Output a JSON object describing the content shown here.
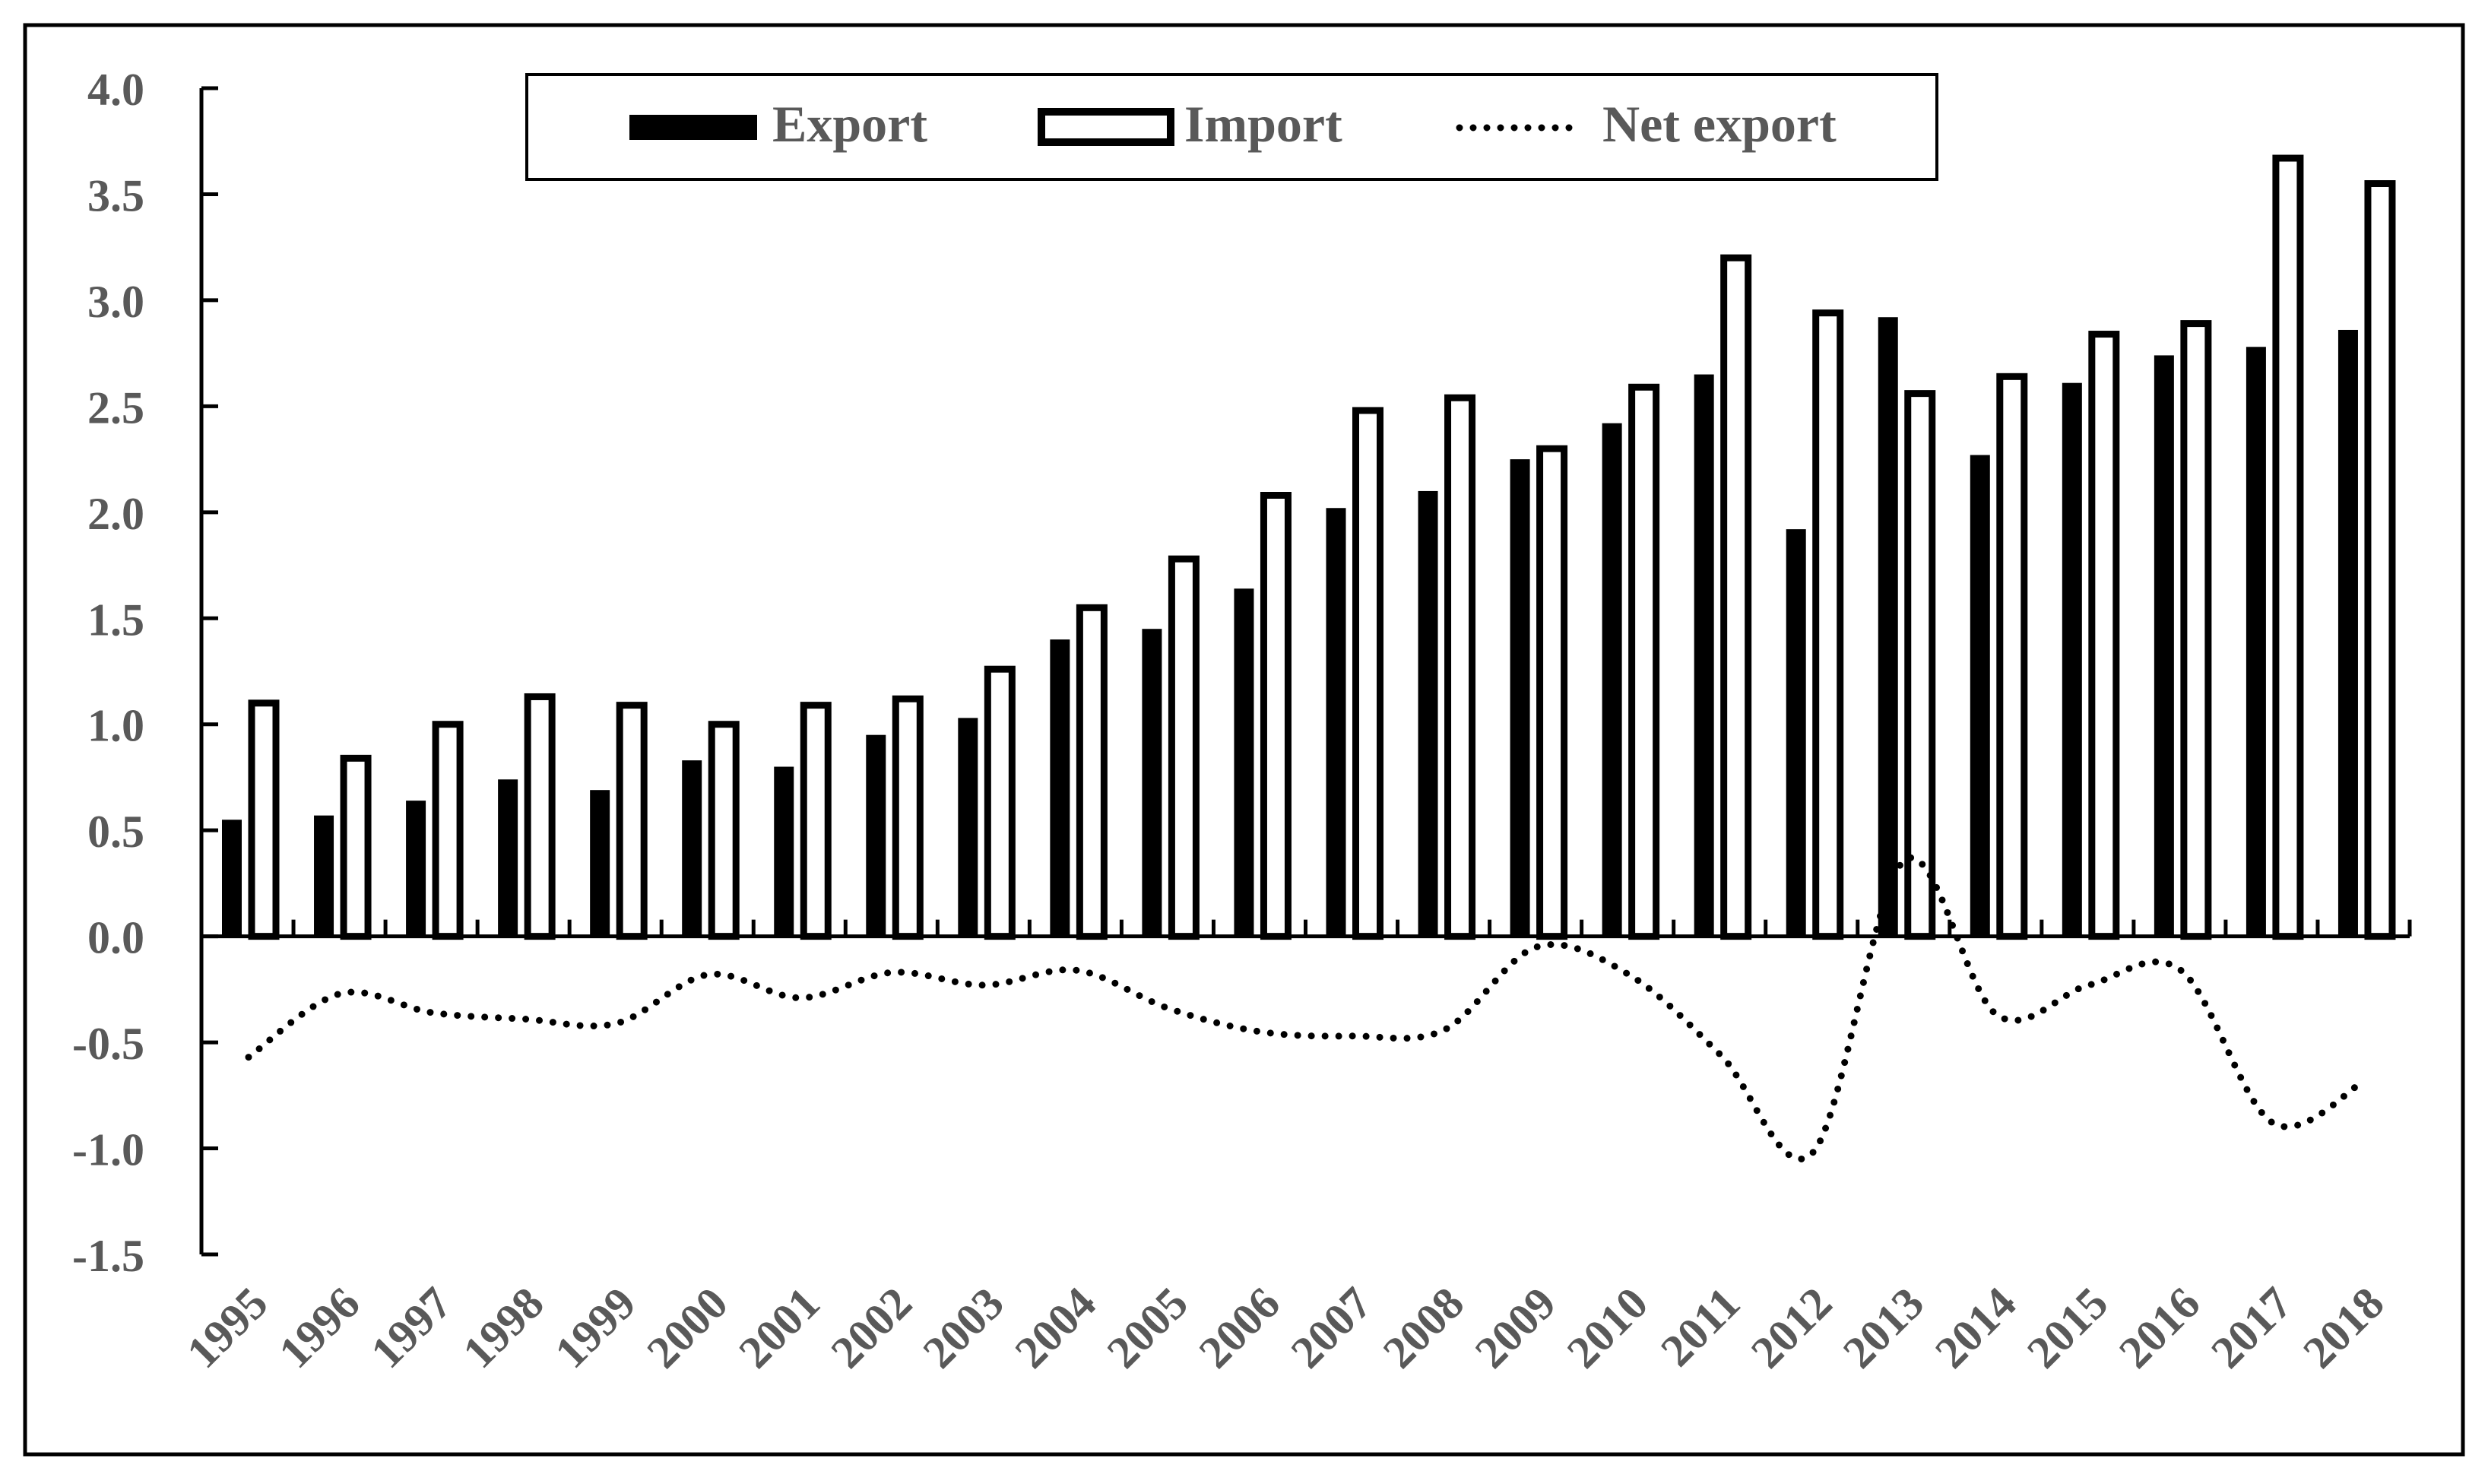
{
  "chart_data": {
    "type": "bar",
    "title": "",
    "xlabel": "",
    "ylabel": "",
    "ylim": [
      -1.5,
      4.0
    ],
    "y_ticks": [
      "4.0",
      "3.5",
      "3.0",
      "2.5",
      "2.0",
      "1.5",
      "1.0",
      "0.5",
      "0.0",
      "-0.5",
      "-1.0",
      "-1.5"
    ],
    "categories": [
      "1995",
      "1996",
      "1997",
      "1998",
      "1999",
      "2000",
      "2001",
      "2002",
      "2003",
      "2004",
      "2005",
      "2006",
      "2007",
      "2008",
      "2009",
      "2010",
      "2011",
      "2012",
      "2013",
      "2014",
      "2015",
      "2016",
      "2017",
      "2018"
    ],
    "legend_position": "top-center",
    "grid": false,
    "series": [
      {
        "name": "Export",
        "type": "bar",
        "style": "solid",
        "color": "#000000",
        "values": [
          0.55,
          0.57,
          0.64,
          0.74,
          0.69,
          0.83,
          0.8,
          0.95,
          1.03,
          1.4,
          1.45,
          1.64,
          2.02,
          2.1,
          2.25,
          2.42,
          2.65,
          1.92,
          2.92,
          2.27,
          2.61,
          2.74,
          2.78,
          2.86
        ]
      },
      {
        "name": "Import",
        "type": "bar",
        "style": "hollow",
        "color": "#000000",
        "values": [
          1.1,
          0.84,
          1.0,
          1.13,
          1.09,
          1.0,
          1.09,
          1.12,
          1.26,
          1.55,
          1.78,
          2.08,
          2.48,
          2.54,
          2.3,
          2.59,
          3.2,
          2.94,
          2.56,
          2.64,
          2.84,
          2.89,
          3.67,
          3.55
        ]
      },
      {
        "name": "Net export",
        "type": "line",
        "style": "dotted",
        "color": "#000000",
        "values": [
          -0.57,
          -0.27,
          -0.36,
          -0.39,
          -0.41,
          -0.18,
          -0.29,
          -0.17,
          -0.23,
          -0.16,
          -0.34,
          -0.45,
          -0.47,
          -0.44,
          -0.05,
          -0.18,
          -0.56,
          -1.02,
          0.36,
          -0.37,
          -0.23,
          -0.16,
          -0.88,
          -0.68
        ]
      }
    ]
  }
}
